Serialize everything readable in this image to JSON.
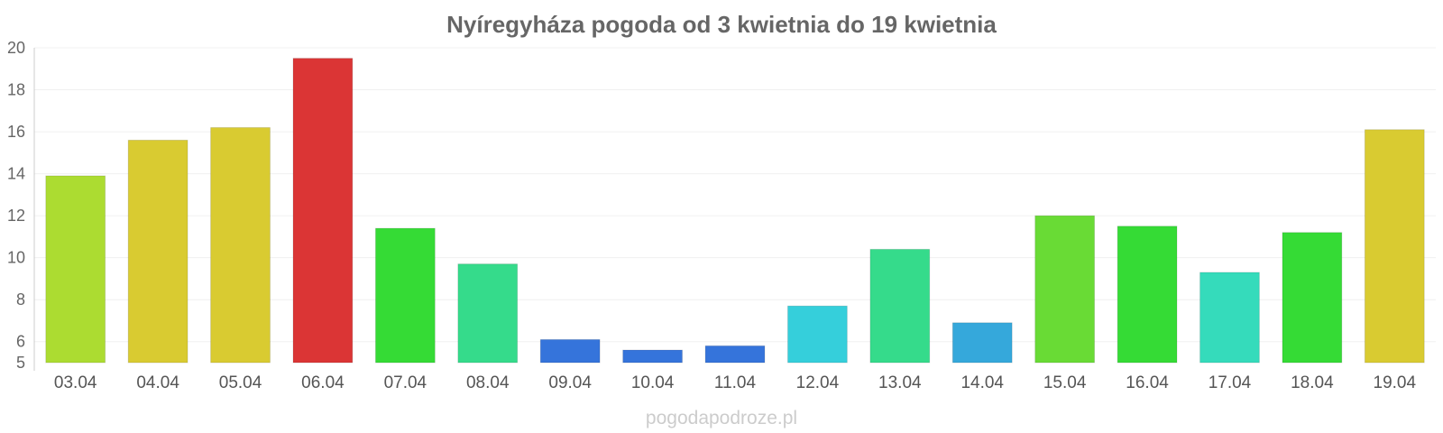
{
  "chart_data": {
    "type": "bar",
    "title": "Nyíregyháza pogoda od 3 kwietnia do 19 kwietnia",
    "xlabel": "",
    "ylabel": "",
    "categories": [
      "03.04",
      "04.04",
      "05.04",
      "06.04",
      "07.04",
      "08.04",
      "09.04",
      "10.04",
      "11.04",
      "12.04",
      "13.04",
      "14.04",
      "15.04",
      "16.04",
      "17.04",
      "18.04",
      "19.04"
    ],
    "values": [
      13.9,
      15.6,
      16.2,
      19.5,
      11.4,
      9.7,
      6.1,
      5.6,
      5.8,
      7.7,
      10.4,
      6.9,
      12.0,
      11.5,
      9.3,
      11.2,
      16.1
    ],
    "colors": [
      "#acdc31",
      "#d9cb31",
      "#d9cb31",
      "#db3535",
      "#35db35",
      "#35db8b",
      "#3574db",
      "#3574db",
      "#3574db",
      "#35cfdb",
      "#35db8b",
      "#35a8db",
      "#69db35",
      "#35db35",
      "#35dbbb",
      "#35db35",
      "#d9cb31"
    ],
    "ylim": [
      5,
      20
    ],
    "yticks": [
      5,
      6,
      8,
      10,
      12,
      14,
      16,
      18,
      20
    ],
    "grid": true,
    "legend": "none"
  },
  "watermark": "pogodapodroze.pl"
}
